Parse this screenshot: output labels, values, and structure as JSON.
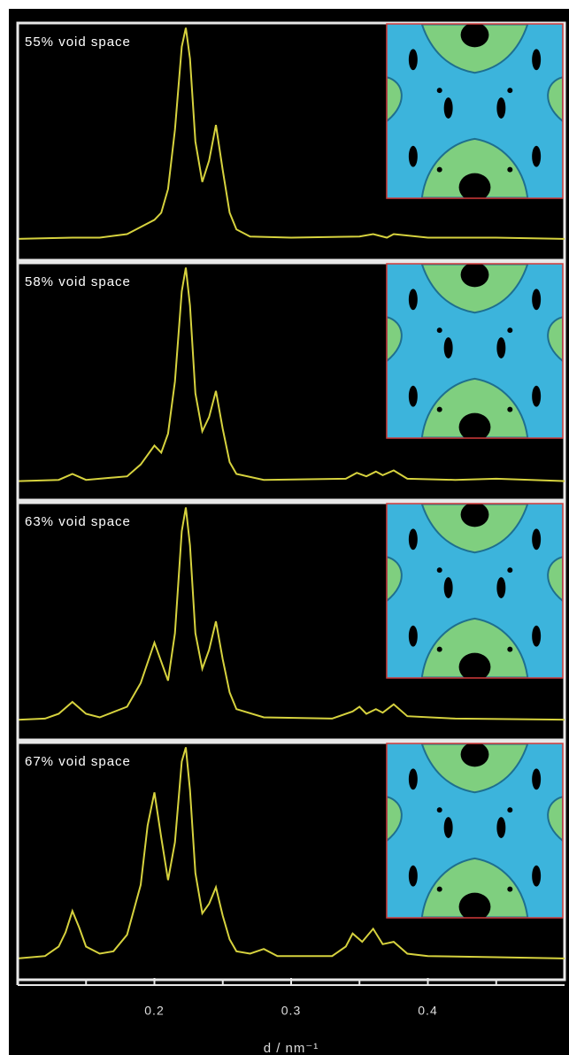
{
  "chart_data": [
    {
      "type": "line",
      "title": "55% void space",
      "color": "#d6d23e",
      "xlim": [
        0.1,
        0.5
      ],
      "ylim": [
        0,
        100
      ],
      "x": [
        0.1,
        0.14,
        0.16,
        0.18,
        0.19,
        0.2,
        0.205,
        0.21,
        0.215,
        0.22,
        0.223,
        0.226,
        0.23,
        0.235,
        0.24,
        0.245,
        0.25,
        0.255,
        0.26,
        0.27,
        0.3,
        0.35,
        0.36,
        0.37,
        0.375,
        0.4,
        0.45,
        0.5
      ],
      "values": [
        9,
        9.5,
        9.5,
        11,
        14,
        17,
        20,
        30,
        55,
        90,
        98,
        85,
        50,
        33,
        42,
        57,
        38,
        20,
        13,
        10,
        9.5,
        10,
        11,
        9.5,
        11,
        9.5,
        9.5,
        9
      ]
    },
    {
      "type": "line",
      "title": "58% void space",
      "color": "#d6d23e",
      "xlim": [
        0.1,
        0.5
      ],
      "ylim": [
        0,
        100
      ],
      "x": [
        0.1,
        0.13,
        0.14,
        0.15,
        0.18,
        0.19,
        0.2,
        0.205,
        0.21,
        0.215,
        0.22,
        0.223,
        0.226,
        0.23,
        0.235,
        0.24,
        0.245,
        0.25,
        0.255,
        0.26,
        0.28,
        0.34,
        0.348,
        0.355,
        0.362,
        0.367,
        0.375,
        0.385,
        0.42,
        0.45,
        0.5
      ],
      "values": [
        8,
        8.5,
        11,
        8.5,
        10,
        15,
        23,
        20,
        28,
        50,
        88,
        98,
        82,
        45,
        29,
        35,
        46,
        30,
        16,
        11,
        8.5,
        9,
        11.5,
        10,
        12,
        10.5,
        12.5,
        9,
        8.5,
        9,
        8
      ]
    },
    {
      "type": "line",
      "title": "63% void space",
      "color": "#d6d23e",
      "xlim": [
        0.1,
        0.5
      ],
      "ylim": [
        0,
        100
      ],
      "x": [
        0.1,
        0.12,
        0.13,
        0.14,
        0.15,
        0.16,
        0.18,
        0.19,
        0.2,
        0.205,
        0.21,
        0.215,
        0.22,
        0.223,
        0.226,
        0.23,
        0.235,
        0.24,
        0.245,
        0.25,
        0.255,
        0.26,
        0.28,
        0.33,
        0.345,
        0.35,
        0.355,
        0.362,
        0.367,
        0.375,
        0.385,
        0.42,
        0.5
      ],
      "values": [
        8.5,
        9,
        11,
        16,
        11,
        9.5,
        14,
        24,
        41,
        33,
        25,
        45,
        88,
        98,
        82,
        45,
        30,
        38,
        50,
        34,
        20,
        13,
        9.5,
        9,
        12,
        14,
        11,
        13,
        11.5,
        15,
        10,
        9,
        8.5
      ]
    },
    {
      "type": "line",
      "title": "67% void space",
      "color": "#d6d23e",
      "xlim": [
        0.1,
        0.5
      ],
      "ylim": [
        0,
        100
      ],
      "x": [
        0.1,
        0.12,
        0.13,
        0.135,
        0.14,
        0.145,
        0.15,
        0.16,
        0.17,
        0.18,
        0.19,
        0.195,
        0.2,
        0.205,
        0.21,
        0.215,
        0.22,
        0.223,
        0.226,
        0.23,
        0.235,
        0.24,
        0.245,
        0.25,
        0.255,
        0.26,
        0.27,
        0.28,
        0.29,
        0.33,
        0.34,
        0.345,
        0.352,
        0.36,
        0.367,
        0.375,
        0.385,
        0.4,
        0.45,
        0.5
      ],
      "values": [
        9,
        10,
        14,
        20,
        29,
        22,
        14,
        11,
        12,
        19,
        40,
        65,
        79,
        60,
        42,
        58,
        92,
        98,
        80,
        45,
        28,
        32,
        39,
        27,
        17,
        12,
        11,
        13,
        10,
        10,
        14,
        19.5,
        16,
        21.5,
        15,
        16,
        11,
        10,
        9.5,
        9
      ],
      "xticks": [
        0.2,
        0.3,
        0.4
      ],
      "xminorticks": [
        0.15,
        0.25,
        0.35,
        0.45
      ],
      "xlabel": "d / nm⁻¹"
    }
  ]
}
